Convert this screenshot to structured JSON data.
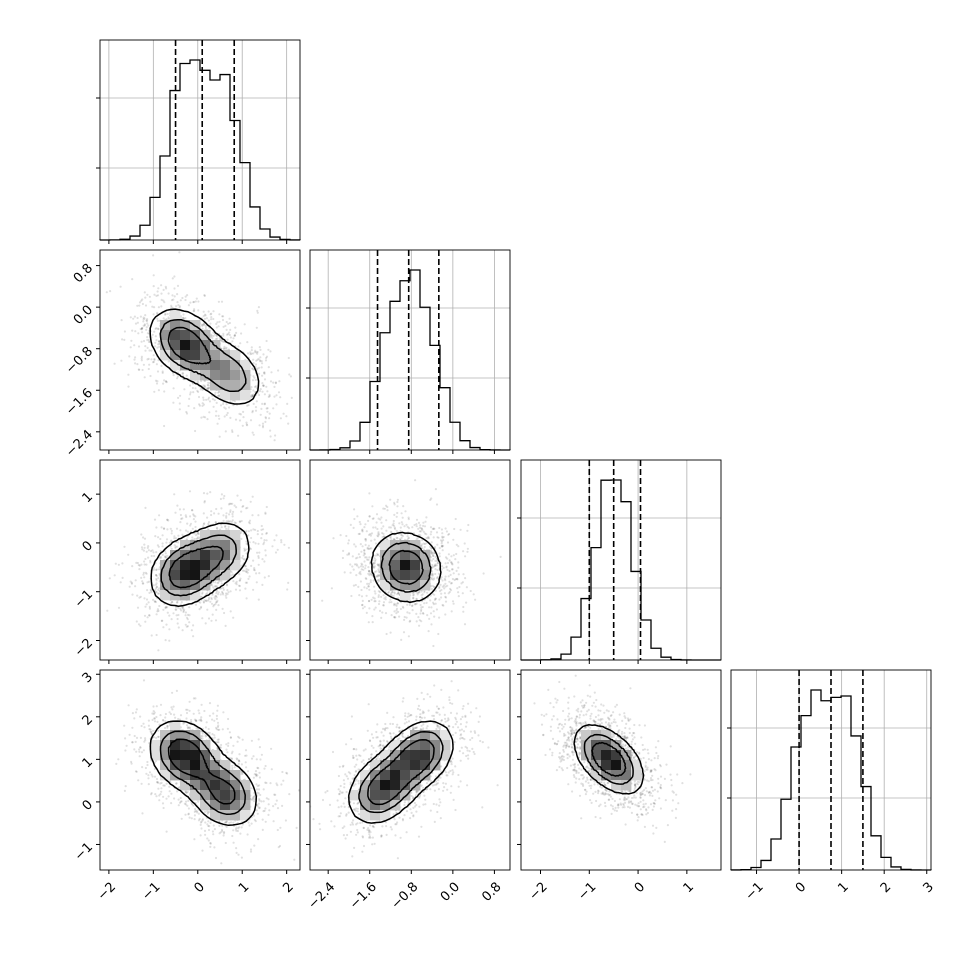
{
  "chart_data": {
    "type": "corner",
    "title": "",
    "colors": {
      "line": "#000000",
      "grid": "#b0b0b0",
      "points": "#000000"
    },
    "parameters": [
      {
        "index": 0,
        "range": [
          -2.2,
          2.3
        ],
        "ticks": [
          -2,
          -1,
          0,
          1,
          2
        ],
        "tick_labels": [
          "−2",
          "−1",
          "0",
          "1",
          "2"
        ],
        "quantiles": [
          -0.5,
          0.1,
          0.82
        ],
        "mode1": [
          -0.3,
          0.52
        ],
        "mode2": [
          0.6,
          0.48
        ]
      },
      {
        "index": 1,
        "range": [
          -2.75,
          1.1
        ],
        "ticks": [
          -2.4,
          -1.6,
          -0.8,
          0.0,
          0.8
        ],
        "tick_labels": [
          "−2.4",
          "−1.6",
          "−0.8",
          "0.0",
          "0.8"
        ],
        "quantiles": [
          -1.45,
          -0.85,
          -0.27
        ],
        "mode1": [
          -0.55,
          0.5
        ],
        "mode2": [
          -1.1,
          0.5
        ]
      },
      {
        "index": 2,
        "range": [
          -2.4,
          1.7
        ],
        "ticks": [
          -2,
          -1,
          0,
          1
        ],
        "tick_labels": [
          "−2",
          "−1",
          "0",
          "1"
        ],
        "quantiles": [
          -1.0,
          -0.5,
          0.05
        ],
        "mode1": [
          -0.5,
          0.5
        ],
        "mode2": [
          -0.5,
          0.5
        ]
      },
      {
        "index": 3,
        "range": [
          -1.6,
          3.1
        ],
        "ticks": [
          -1,
          0,
          1,
          2,
          3
        ],
        "tick_labels": [
          "−1",
          "0",
          "1",
          "2",
          "3"
        ],
        "quantiles": [
          0.0,
          0.75,
          1.5
        ],
        "mode1": [
          1.1,
          0.5
        ],
        "mode2": [
          0.2,
          0.5
        ]
      }
    ],
    "pair_modes": [
      {
        "xi": 0,
        "yi": 1,
        "modes": [
          {
            "x": -0.3,
            "y": -0.7,
            "w": 0.6
          },
          {
            "x": 0.7,
            "y": -1.3,
            "w": 0.4
          }
        ],
        "rho": -0.3
      },
      {
        "xi": 0,
        "yi": 2,
        "modes": [
          {
            "x": -0.3,
            "y": -0.6,
            "w": 0.6
          },
          {
            "x": 0.5,
            "y": -0.2,
            "w": 0.4
          }
        ],
        "rho": 0.2
      },
      {
        "xi": 1,
        "yi": 2,
        "modes": [
          {
            "x": -0.9,
            "y": -0.5,
            "w": 1.0
          }
        ],
        "rho": -0.1
      },
      {
        "xi": 0,
        "yi": 3,
        "modes": [
          {
            "x": -0.3,
            "y": 1.1,
            "w": 0.55
          },
          {
            "x": 0.6,
            "y": 0.2,
            "w": 0.45
          }
        ],
        "rho": -0.2
      },
      {
        "xi": 1,
        "yi": 3,
        "modes": [
          {
            "x": -0.65,
            "y": 1.1,
            "w": 0.5
          },
          {
            "x": -1.35,
            "y": 0.3,
            "w": 0.5
          }
        ],
        "rho": 0.3
      },
      {
        "xi": 2,
        "yi": 3,
        "modes": [
          {
            "x": -0.6,
            "y": 1.0,
            "w": 1.0
          }
        ],
        "rho": -0.5
      }
    ]
  }
}
